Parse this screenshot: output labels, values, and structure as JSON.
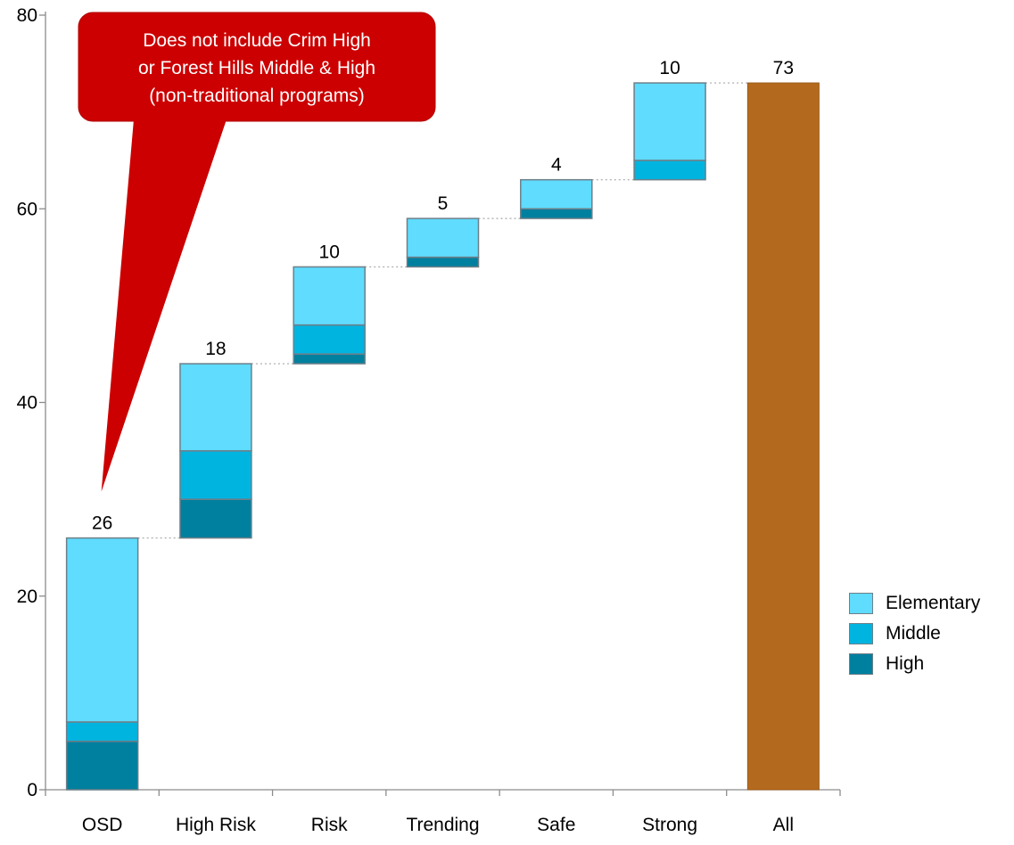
{
  "chart_data": {
    "type": "bar",
    "subtype": "stacked waterfall",
    "title": "",
    "xlabel": "",
    "ylabel": "",
    "ylim": [
      0,
      80
    ],
    "yticks": [
      "0",
      "20",
      "40",
      "60",
      "80"
    ],
    "grid": false,
    "legend_position": "right",
    "categories": [
      "OSD",
      "High Risk",
      "Risk",
      "Trending",
      "Safe",
      "Strong",
      "All"
    ],
    "bases": [
      0,
      26,
      44,
      54,
      59,
      63,
      0
    ],
    "series": [
      {
        "name": "High",
        "color": "#00809f",
        "values": [
          5,
          4,
          1,
          1,
          1,
          0,
          0
        ]
      },
      {
        "name": "Middle",
        "color": "#00b4e0",
        "values": [
          2,
          5,
          3,
          0,
          0,
          2,
          0
        ]
      },
      {
        "name": "Elementary",
        "color": "#5fdcfe",
        "values": [
          19,
          9,
          6,
          4,
          3,
          8,
          0
        ]
      },
      {
        "name": "",
        "color": "#b46a1e",
        "values": [
          0,
          0,
          0,
          0,
          0,
          0,
          73
        ]
      }
    ],
    "data_labels": [
      "26",
      "18",
      "10",
      "5",
      "4",
      "10",
      "73"
    ],
    "legend": [
      {
        "label": "Elementary",
        "color": "#5fdcfe"
      },
      {
        "label": "Middle",
        "color": "#00b4e0"
      },
      {
        "label": "High",
        "color": "#00809f"
      }
    ],
    "annotation": {
      "lines": [
        "Does not include Crim High",
        "or Forest Hills Middle & High",
        "(non-traditional programs)"
      ],
      "color": "#cc0000",
      "target_category": "OSD"
    }
  }
}
